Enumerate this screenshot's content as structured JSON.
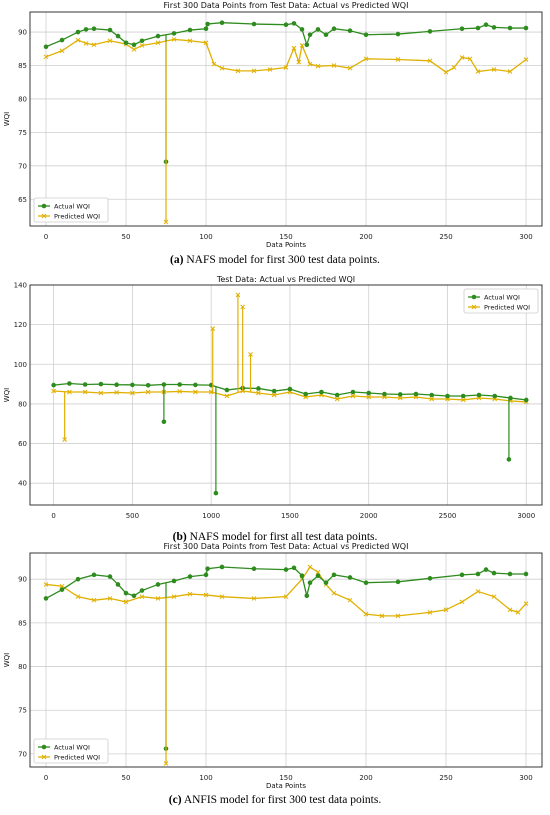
{
  "figure": {
    "captions": [
      {
        "letter": "a",
        "text": "NAFS model for first 300 test data points."
      },
      {
        "letter": "b",
        "text": "NAFS model for first all test data points."
      },
      {
        "letter": "c",
        "text": "ANFIS model for first 300 test data points."
      }
    ]
  },
  "colors": {
    "actual": "#2e8b1e",
    "predicted": "#e0b000",
    "grid": "#cfcfcf"
  },
  "chart_data": [
    {
      "type": "line",
      "title": "First 300 Data Points from Test Data: Actual vs Predicted WQI",
      "xlabel": "Data Points",
      "ylabel": "WQI",
      "xlim": [
        -10,
        310
      ],
      "ylim": [
        61,
        93
      ],
      "xticks": [
        0,
        50,
        100,
        150,
        200,
        250,
        300
      ],
      "yticks": [
        65,
        70,
        75,
        80,
        85,
        90
      ],
      "grid": true,
      "legend": "bottom-left",
      "series": [
        {
          "name": "Actual WQI",
          "marker": "circle",
          "color": "#2e8b1e",
          "x": [
            0,
            10,
            20,
            25,
            30,
            40,
            45,
            50,
            55,
            60,
            70,
            80,
            90,
            100,
            101,
            110,
            130,
            150,
            155,
            160,
            163,
            165,
            170,
            175,
            180,
            190,
            200,
            220,
            240,
            260,
            270,
            275,
            280,
            290,
            300
          ],
          "y": [
            87.8,
            88.8,
            90.0,
            90.4,
            90.5,
            90.3,
            89.4,
            88.4,
            88.1,
            88.7,
            89.4,
            89.8,
            90.3,
            90.5,
            91.2,
            91.4,
            91.2,
            91.1,
            91.3,
            90.4,
            88.1,
            89.6,
            90.4,
            89.6,
            90.5,
            90.2,
            89.6,
            89.7,
            90.1,
            90.5,
            90.6,
            91.1,
            90.7,
            90.6,
            90.6
          ]
        },
        {
          "name": "Predicted WQI",
          "marker": "x",
          "color": "#e0b000",
          "x": [
            0,
            10,
            20,
            25,
            30,
            40,
            50,
            55,
            60,
            70,
            80,
            90,
            100,
            105,
            110,
            120,
            130,
            140,
            150,
            155,
            158,
            160,
            165,
            170,
            180,
            190,
            200,
            220,
            240,
            250,
            255,
            260,
            265,
            270,
            280,
            290,
            300
          ],
          "y": [
            86.3,
            87.2,
            88.8,
            88.3,
            88.1,
            88.7,
            88.2,
            87.4,
            88.0,
            88.4,
            88.9,
            88.7,
            88.4,
            85.2,
            84.6,
            84.2,
            84.2,
            84.4,
            84.7,
            87.6,
            85.5,
            88.0,
            85.2,
            84.9,
            85.0,
            84.6,
            86.0,
            85.9,
            85.7,
            84.0,
            84.7,
            86.2,
            86.0,
            84.1,
            84.4,
            84.1,
            85.9
          ]
        }
      ],
      "outliers": [
        {
          "series": "Actual WQI",
          "x": 75,
          "y": 70.6
        },
        {
          "series": "Predicted WQI",
          "x": 75,
          "y": 61.6
        }
      ]
    },
    {
      "type": "line",
      "title": "Test Data: Actual vs Predicted WQI",
      "xlabel": "",
      "ylabel": "WQI",
      "xlim": [
        -150,
        3100
      ],
      "ylim": [
        29,
        140
      ],
      "xticks": [
        0,
        500,
        1000,
        1500,
        2000,
        2500,
        3000
      ],
      "yticks": [
        40,
        60,
        80,
        100,
        120,
        140
      ],
      "grid": true,
      "legend": "top-right",
      "series": [
        {
          "name": "Actual WQI",
          "marker": "circle",
          "color": "#2e8b1e",
          "x": [
            0,
            100,
            200,
            300,
            400,
            500,
            600,
            700,
            800,
            900,
            1000,
            1100,
            1200,
            1300,
            1400,
            1500,
            1600,
            1700,
            1800,
            1900,
            2000,
            2100,
            2200,
            2300,
            2400,
            2500,
            2600,
            2700,
            2800,
            2900,
            3000
          ],
          "y": [
            89.5,
            90.3,
            89.8,
            90.0,
            89.7,
            89.6,
            89.4,
            89.8,
            89.8,
            89.6,
            89.5,
            87.0,
            88.0,
            87.8,
            86.5,
            87.5,
            85.0,
            86.0,
            84.5,
            86.0,
            85.5,
            85.0,
            84.8,
            85.0,
            84.5,
            84.0,
            84.0,
            84.5,
            84.0,
            83.0,
            82.0
          ]
        },
        {
          "name": "Predicted WQI",
          "marker": "x",
          "color": "#e0b000",
          "x": [
            0,
            100,
            200,
            300,
            400,
            500,
            600,
            700,
            800,
            900,
            1000,
            1100,
            1200,
            1300,
            1400,
            1500,
            1600,
            1700,
            1800,
            1900,
            2000,
            2100,
            2200,
            2300,
            2400,
            2500,
            2600,
            2700,
            2800,
            2900,
            3000
          ],
          "y": [
            86.5,
            86.0,
            86.0,
            85.5,
            85.8,
            85.5,
            86.0,
            86.0,
            86.3,
            86.0,
            86.0,
            84.0,
            86.5,
            85.5,
            84.5,
            86.0,
            83.5,
            84.5,
            82.5,
            84.0,
            83.5,
            83.5,
            83.0,
            83.5,
            82.5,
            82.5,
            82.0,
            83.0,
            82.5,
            81.5,
            81.0
          ]
        }
      ],
      "outliers": [
        {
          "series": "Predicted WQI",
          "x": 70,
          "y": 62
        },
        {
          "series": "Actual WQI",
          "x": 700,
          "y": 71
        },
        {
          "series": "Predicted WQI",
          "x": 1010,
          "y": 118
        },
        {
          "series": "Actual WQI",
          "x": 1030,
          "y": 35
        },
        {
          "series": "Predicted WQI",
          "x": 1170,
          "y": 135
        },
        {
          "series": "Predicted WQI",
          "x": 1200,
          "y": 129
        },
        {
          "series": "Predicted WQI",
          "x": 1250,
          "y": 105
        },
        {
          "series": "Actual WQI",
          "x": 2890,
          "y": 52
        }
      ]
    },
    {
      "type": "line",
      "title": "First 300 Data Points from Test Data: Actual vs Predicted WQI",
      "xlabel": "Data Points",
      "ylabel": "WQI",
      "xlim": [
        -10,
        310
      ],
      "ylim": [
        68.5,
        93
      ],
      "xticks": [
        0,
        50,
        100,
        150,
        200,
        250,
        300
      ],
      "yticks": [
        70,
        75,
        80,
        85,
        90
      ],
      "grid": true,
      "legend": "bottom-left",
      "series": [
        {
          "name": "Actual WQI",
          "marker": "circle",
          "color": "#2e8b1e",
          "x": [
            0,
            10,
            20,
            30,
            40,
            45,
            50,
            55,
            60,
            70,
            80,
            90,
            100,
            101,
            110,
            130,
            150,
            155,
            160,
            163,
            165,
            170,
            175,
            180,
            190,
            200,
            220,
            240,
            260,
            270,
            275,
            280,
            290,
            300
          ],
          "y": [
            87.8,
            88.8,
            90.0,
            90.5,
            90.3,
            89.4,
            88.4,
            88.1,
            88.7,
            89.4,
            89.8,
            90.3,
            90.5,
            91.2,
            91.4,
            91.2,
            91.1,
            91.3,
            90.4,
            88.1,
            89.6,
            90.4,
            89.6,
            90.5,
            90.2,
            89.6,
            89.7,
            90.1,
            90.5,
            90.6,
            91.1,
            90.7,
            90.6,
            90.6
          ]
        },
        {
          "name": "Predicted WQI",
          "marker": "x",
          "color": "#e0b000",
          "x": [
            0,
            10,
            20,
            30,
            40,
            50,
            60,
            70,
            80,
            90,
            100,
            110,
            130,
            150,
            160,
            165,
            170,
            175,
            180,
            190,
            200,
            210,
            220,
            240,
            250,
            260,
            270,
            280,
            290,
            295,
            300
          ],
          "y": [
            89.4,
            89.2,
            88.0,
            87.6,
            87.8,
            87.4,
            88.0,
            87.8,
            88.0,
            88.3,
            88.2,
            88.0,
            87.8,
            88.0,
            90.0,
            91.4,
            90.8,
            89.4,
            88.4,
            87.6,
            86.0,
            85.8,
            85.8,
            86.2,
            86.5,
            87.4,
            88.6,
            88.0,
            86.5,
            86.2,
            87.2
          ]
        }
      ],
      "outliers": [
        {
          "series": "Actual WQI",
          "x": 75,
          "y": 70.6
        },
        {
          "series": "Predicted WQI",
          "x": 75,
          "y": 68.9
        }
      ]
    }
  ]
}
